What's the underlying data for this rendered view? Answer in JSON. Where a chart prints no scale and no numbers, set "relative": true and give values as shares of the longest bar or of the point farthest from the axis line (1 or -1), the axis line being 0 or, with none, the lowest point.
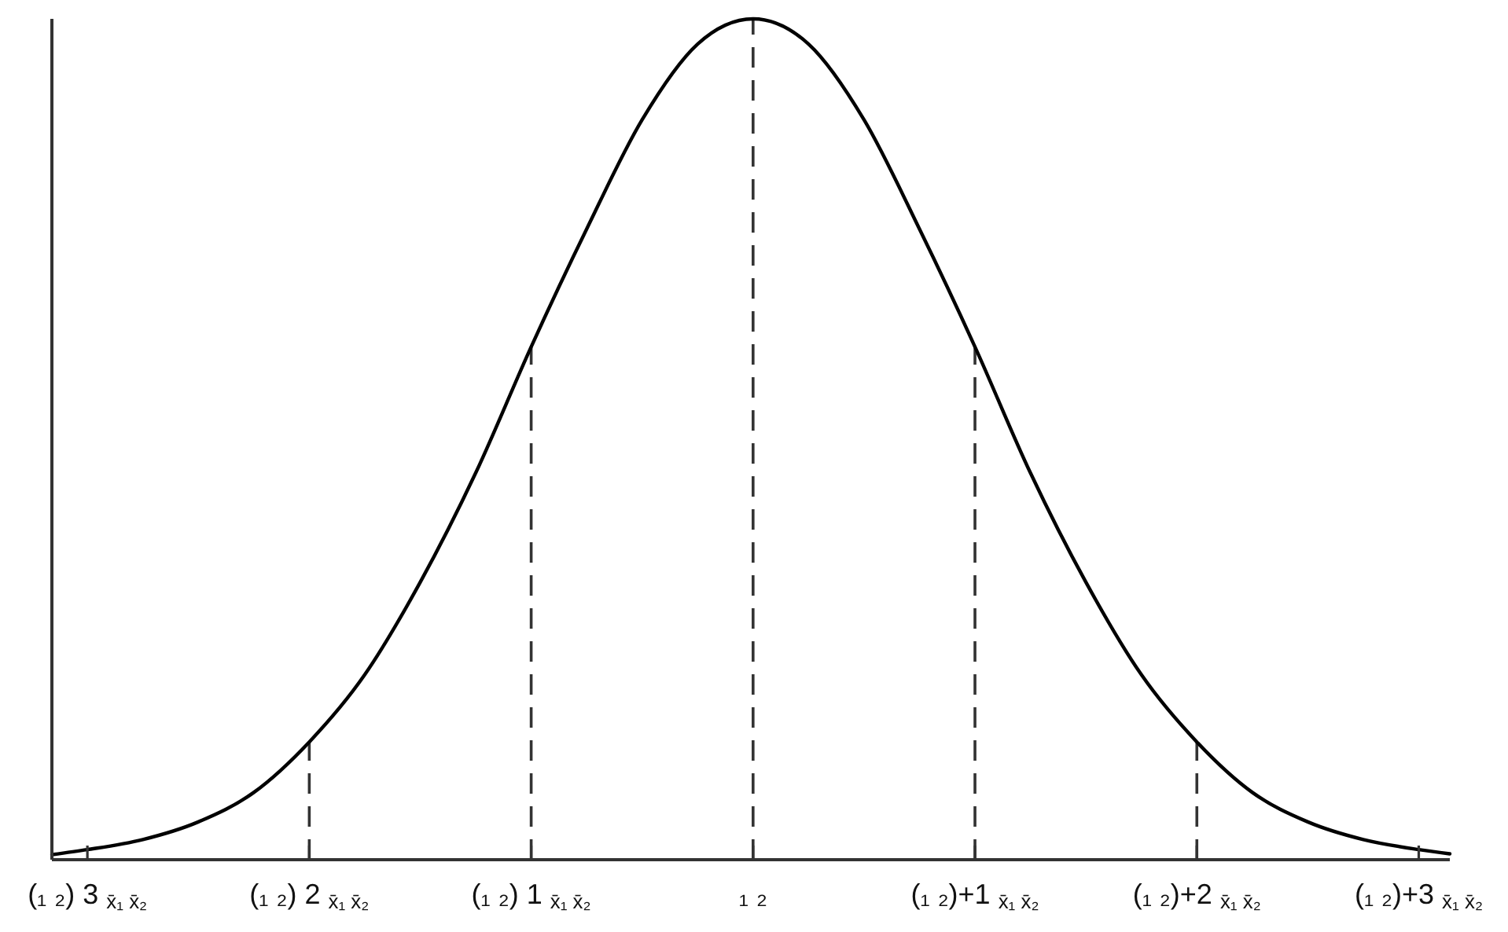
{
  "chart_data": {
    "type": "line",
    "relative": true,
    "x": [
      -3.16,
      -3,
      -2.75,
      -2.5,
      -2.25,
      -2,
      -1.75,
      -1.5,
      -1.25,
      -1,
      -0.75,
      -0.5,
      -0.25,
      0,
      0.25,
      0.5,
      0.75,
      1,
      1.25,
      1.5,
      1.75,
      2,
      2.25,
      2.5,
      2.75,
      3,
      3.14
    ],
    "series": [
      {
        "color": "#000000",
        "values": [
          0.006,
          0.012,
          0.024,
          0.045,
          0.08,
          0.14,
          0.22,
          0.33,
          0.46,
          0.61,
          0.75,
          0.88,
          0.97,
          1,
          0.97,
          0.88,
          0.75,
          0.61,
          0.46,
          0.33,
          0.22,
          0.14,
          0.08,
          0.045,
          0.024,
          0.012,
          0.007
        ]
      }
    ],
    "xlim": [
      -3.16,
      3.14
    ],
    "xticks": [
      {
        "value": -3,
        "label": "(₁ ₂) 3 $_{x̄₁ x̄₂}$"
      },
      {
        "value": -2,
        "label": "(₁ ₂) 2 $_{x̄₁ x̄₂}$"
      },
      {
        "value": -1,
        "label": "(₁ ₂) 1 $_{x̄₁ x̄₂}$"
      },
      {
        "value": 0,
        "label": "₁ ₂"
      },
      {
        "value": 1,
        "label": "(₁ ₂)+1 $_{x̄₁ x̄₂}$"
      },
      {
        "value": 2,
        "label": "(₁ ₂)+2 $_{x̄₁ x̄₂}$"
      },
      {
        "value": 3,
        "label": "(₁ ₂)+3 $_{x̄₁ x̄₂}$"
      }
    ],
    "ref_lines": [
      {
        "axis": "x",
        "value": -2,
        "color": "#333333",
        "line_style": "dashed"
      },
      {
        "axis": "x",
        "value": -1,
        "color": "#333333",
        "line_style": "dashed"
      },
      {
        "axis": "x",
        "value": 0,
        "color": "#333333",
        "line_style": "dashed"
      },
      {
        "axis": "x",
        "value": 1,
        "color": "#333333",
        "line_style": "dashed"
      },
      {
        "axis": "x",
        "value": 2,
        "color": "#333333",
        "line_style": "dashed"
      }
    ]
  }
}
